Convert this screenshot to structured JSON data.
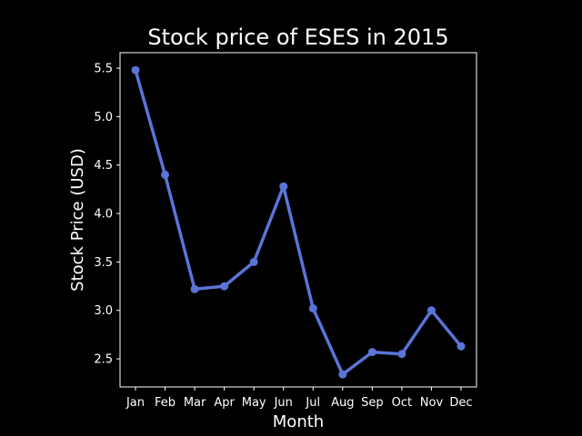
{
  "chart_data": {
    "type": "line",
    "title": "Stock price of ESES in 2015",
    "xlabel": "Month",
    "ylabel": "Stock Price (USD)",
    "categories": [
      "Jan",
      "Feb",
      "Mar",
      "Apr",
      "May",
      "Jun",
      "Jul",
      "Aug",
      "Sep",
      "Oct",
      "Nov",
      "Dec"
    ],
    "series": [
      {
        "values": [
          5.48,
          4.4,
          3.22,
          3.25,
          3.5,
          4.28,
          3.02,
          2.34,
          2.57,
          2.55,
          3.0,
          2.63
        ]
      }
    ],
    "ylim": [
      2.21,
      5.66
    ],
    "yticks": [
      "2.5",
      "3.0",
      "3.5",
      "4.0",
      "4.5",
      "5.0",
      "5.5"
    ],
    "line_color": "#5a74d8",
    "background_color": "#000000",
    "text_color": "#ffffff",
    "grid": false,
    "legend": "none"
  }
}
